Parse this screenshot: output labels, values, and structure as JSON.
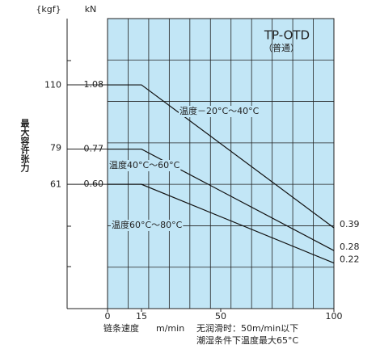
{
  "chart_data": {
    "type": "line",
    "title": "TP-OTD",
    "subtitle": "（普通）",
    "y_label": "最大容许张力",
    "y_unit": "kN",
    "y2_unit": "{kgf}",
    "x_label": "链条速度",
    "x_unit": "m/min",
    "annotations": [
      "无润滑时：50m/min以下",
      "潮湿条件下温度最大65°C"
    ],
    "xlim": [
      0,
      100
    ],
    "xticks": [
      0,
      15,
      50,
      100
    ],
    "ylim": [
      0,
      1.4
    ],
    "yticks": [
      {
        "value": 0.6,
        "label": "0.60"
      },
      0.77,
      1.08
    ],
    "y2lim": [
      0,
      142.8
    ],
    "y2ticks": [
      61,
      79,
      110
    ],
    "background": "#c2e6f6",
    "grid": true,
    "x": [
      0,
      15,
      100
    ],
    "series": [
      {
        "name": "温度－20°C～40°C",
        "color": "#111",
        "values": [
          1.08,
          1.08,
          0.39
        ]
      },
      {
        "name": "温度40°C～60°C",
        "color": "#111",
        "values": [
          0.77,
          0.77,
          0.28
        ]
      },
      {
        "name": "温度60°C～80°C",
        "color": "#111",
        "values": [
          0.6,
          0.6,
          0.22
        ]
      }
    ]
  }
}
